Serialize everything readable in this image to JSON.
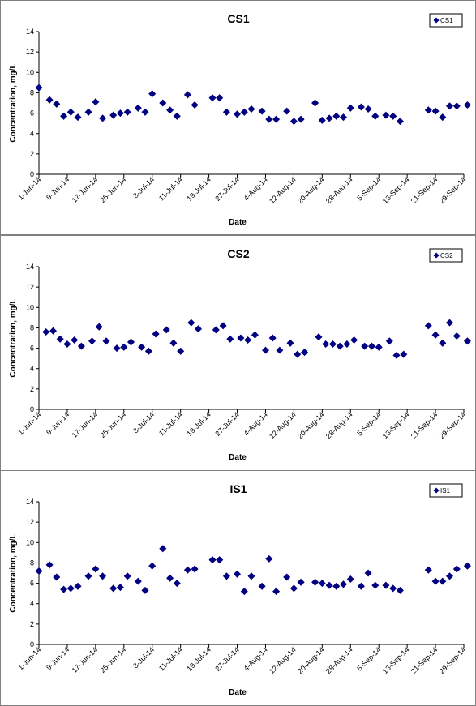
{
  "chart_data": [
    {
      "type": "scatter",
      "title": "CS1",
      "xlabel": "Date",
      "ylabel": "Concentration, mg/L",
      "ylim": [
        0,
        14
      ],
      "yticks": [
        "0",
        "2",
        "4",
        "6",
        "8",
        "10",
        "12",
        "14"
      ],
      "xlim": [
        "2014-06-01",
        "2014-09-29"
      ],
      "xticks": [
        "1-Jun-14",
        "9-Jun-14",
        "17-Jun-14",
        "25-Jun-14",
        "3-Jul-14",
        "11-Jul-14",
        "19-Jul-14",
        "27-Jul-14",
        "4-Aug-14",
        "12-Aug-14",
        "20-Aug-14",
        "28-Aug-14",
        "5-Sep-14",
        "13-Sep-14",
        "21-Sep-14",
        "29-Sep-14"
      ],
      "grid": false,
      "legend": "top-right",
      "marker_color": "#000080",
      "series": [
        {
          "name": "CS1",
          "x": [
            "2014-06-01",
            "2014-06-04",
            "2014-06-06",
            "2014-06-08",
            "2014-06-10",
            "2014-06-12",
            "2014-06-15",
            "2014-06-17",
            "2014-06-19",
            "2014-06-22",
            "2014-06-24",
            "2014-06-26",
            "2014-06-29",
            "2014-07-01",
            "2014-07-03",
            "2014-07-06",
            "2014-07-08",
            "2014-07-10",
            "2014-07-13",
            "2014-07-15",
            "2014-07-20",
            "2014-07-22",
            "2014-07-24",
            "2014-07-27",
            "2014-07-29",
            "2014-07-31",
            "2014-08-03",
            "2014-08-05",
            "2014-08-07",
            "2014-08-10",
            "2014-08-12",
            "2014-08-14",
            "2014-08-18",
            "2014-08-20",
            "2014-08-22",
            "2014-08-24",
            "2014-08-26",
            "2014-08-28",
            "2014-08-31",
            "2014-09-02",
            "2014-09-04",
            "2014-09-07",
            "2014-09-09",
            "2014-09-11",
            "2014-09-19",
            "2014-09-21",
            "2014-09-23",
            "2014-09-25",
            "2014-09-27",
            "2014-09-30"
          ],
          "y": [
            8.5,
            7.3,
            6.9,
            5.7,
            6.1,
            5.6,
            6.1,
            7.1,
            5.5,
            5.8,
            6.0,
            6.1,
            6.5,
            6.1,
            7.9,
            7.0,
            6.3,
            5.7,
            7.8,
            6.8,
            7.5,
            7.5,
            6.1,
            5.9,
            6.1,
            6.4,
            6.2,
            5.4,
            5.4,
            6.2,
            5.2,
            5.4,
            7.0,
            5.3,
            5.5,
            5.7,
            5.6,
            6.5,
            6.6,
            6.4,
            5.7,
            5.8,
            5.7,
            5.2,
            6.3,
            6.2,
            5.6,
            6.7,
            6.7,
            6.8
          ]
        }
      ]
    },
    {
      "type": "scatter",
      "title": "CS2",
      "xlabel": "Date",
      "ylabel": "Concentration, mg/L",
      "ylim": [
        0,
        14
      ],
      "yticks": [
        "0",
        "2",
        "4",
        "6",
        "8",
        "10",
        "12",
        "14"
      ],
      "xlim": [
        "2014-06-01",
        "2014-09-29"
      ],
      "xticks": [
        "1-Jun-14",
        "9-Jun-14",
        "17-Jun-14",
        "25-Jun-14",
        "3-Jul-14",
        "11-Jul-14",
        "19-Jul-14",
        "27-Jul-14",
        "4-Aug-14",
        "12-Aug-14",
        "20-Aug-14",
        "28-Aug-14",
        "5-Sep-14",
        "13-Sep-14",
        "21-Sep-14",
        "29-Sep-14"
      ],
      "grid": false,
      "legend": "top-right",
      "marker_color": "#000080",
      "series": [
        {
          "name": "CS2",
          "x": [
            "2014-06-03",
            "2014-06-05",
            "2014-06-07",
            "2014-06-09",
            "2014-06-11",
            "2014-06-13",
            "2014-06-16",
            "2014-06-18",
            "2014-06-20",
            "2014-06-23",
            "2014-06-25",
            "2014-06-27",
            "2014-06-30",
            "2014-07-02",
            "2014-07-04",
            "2014-07-07",
            "2014-07-09",
            "2014-07-11",
            "2014-07-14",
            "2014-07-16",
            "2014-07-21",
            "2014-07-23",
            "2014-07-25",
            "2014-07-28",
            "2014-07-30",
            "2014-08-01",
            "2014-08-04",
            "2014-08-06",
            "2014-08-08",
            "2014-08-11",
            "2014-08-13",
            "2014-08-15",
            "2014-08-19",
            "2014-08-21",
            "2014-08-23",
            "2014-08-25",
            "2014-08-27",
            "2014-08-29",
            "2014-09-01",
            "2014-09-03",
            "2014-09-05",
            "2014-09-08",
            "2014-09-10",
            "2014-09-12",
            "2014-09-19",
            "2014-09-21",
            "2014-09-23",
            "2014-09-25",
            "2014-09-27",
            "2014-09-30"
          ],
          "y": [
            7.6,
            7.7,
            6.9,
            6.4,
            6.8,
            6.2,
            6.7,
            8.1,
            6.7,
            6.0,
            6.1,
            6.6,
            6.1,
            5.7,
            7.4,
            7.8,
            6.5,
            5.7,
            8.5,
            7.9,
            7.8,
            8.2,
            6.9,
            7.0,
            6.8,
            7.3,
            5.8,
            7.0,
            5.8,
            6.5,
            5.4,
            5.6,
            7.1,
            6.4,
            6.4,
            6.2,
            6.4,
            6.8,
            6.2,
            6.2,
            6.1,
            6.7,
            5.3,
            5.4,
            8.2,
            7.3,
            6.5,
            8.5,
            7.2,
            6.7
          ]
        }
      ]
    },
    {
      "type": "scatter",
      "title": "IS1",
      "xlabel": "Date",
      "ylabel": "Concentration, mg/L",
      "ylim": [
        0,
        14
      ],
      "yticks": [
        "0",
        "2",
        "4",
        "6",
        "8",
        "10",
        "12",
        "14"
      ],
      "xlim": [
        "2014-06-01",
        "2014-09-29"
      ],
      "xticks": [
        "1-Jun-14",
        "9-Jun-14",
        "17-Jun-14",
        "25-Jun-14",
        "3-Jul-14",
        "11-Jul-14",
        "19-Jul-14",
        "27-Jul-14",
        "4-Aug-14",
        "12-Aug-14",
        "20-Aug-14",
        "28-Aug-14",
        "5-Sep-14",
        "13-Sep-14",
        "21-Sep-14",
        "29-Sep-14"
      ],
      "grid": false,
      "legend": "top-right",
      "marker_color": "#000080",
      "series": [
        {
          "name": "IS1",
          "x": [
            "2014-06-01",
            "2014-06-04",
            "2014-06-06",
            "2014-06-08",
            "2014-06-10",
            "2014-06-12",
            "2014-06-15",
            "2014-06-17",
            "2014-06-19",
            "2014-06-22",
            "2014-06-24",
            "2014-06-26",
            "2014-06-29",
            "2014-07-01",
            "2014-07-03",
            "2014-07-06",
            "2014-07-08",
            "2014-07-10",
            "2014-07-13",
            "2014-07-15",
            "2014-07-20",
            "2014-07-22",
            "2014-07-24",
            "2014-07-27",
            "2014-07-29",
            "2014-07-31",
            "2014-08-03",
            "2014-08-05",
            "2014-08-07",
            "2014-08-10",
            "2014-08-12",
            "2014-08-14",
            "2014-08-18",
            "2014-08-20",
            "2014-08-22",
            "2014-08-24",
            "2014-08-26",
            "2014-08-28",
            "2014-08-31",
            "2014-09-02",
            "2014-09-04",
            "2014-09-07",
            "2014-09-09",
            "2014-09-11",
            "2014-09-19",
            "2014-09-21",
            "2014-09-23",
            "2014-09-25",
            "2014-09-27",
            "2014-09-30"
          ],
          "y": [
            7.2,
            7.8,
            6.6,
            5.4,
            5.5,
            5.7,
            6.7,
            7.4,
            6.7,
            5.5,
            5.6,
            6.7,
            6.2,
            5.3,
            7.7,
            9.4,
            6.5,
            6.0,
            7.3,
            7.4,
            8.3,
            8.3,
            6.7,
            6.9,
            5.2,
            6.7,
            5.7,
            8.4,
            5.2,
            6.6,
            5.5,
            6.1,
            6.1,
            6.0,
            5.8,
            5.7,
            5.9,
            6.4,
            5.7,
            7.0,
            5.8,
            5.8,
            5.5,
            5.3,
            7.3,
            6.2,
            6.2,
            6.7,
            7.4,
            7.7
          ]
        }
      ]
    }
  ]
}
